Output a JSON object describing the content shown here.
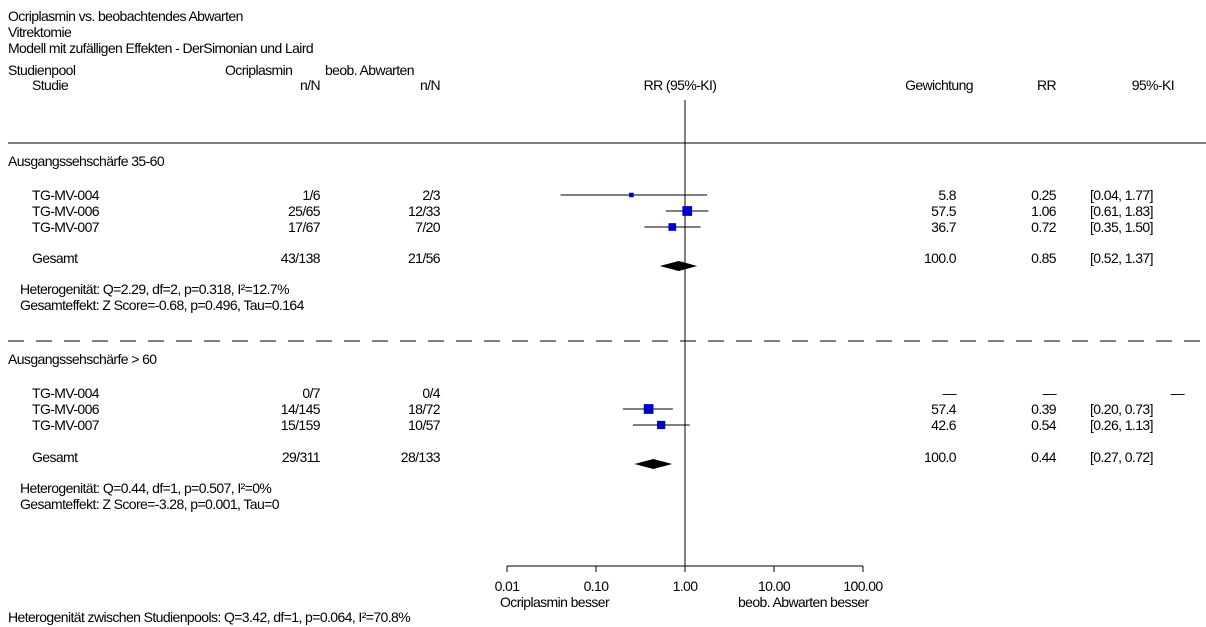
{
  "header": {
    "title": "Ocriplasmin vs. beobachtendes Abwarten",
    "endpoint": "Vitrektomie",
    "model": "Modell mit zufälligen Effekten - DerSimonian und Laird"
  },
  "columns": {
    "pool": "Studienpool",
    "study": "Studie",
    "group1": "Ocriplasmin",
    "group2": "beob. Abwarten",
    "nn1": "n/N",
    "nn2": "n/N",
    "effect": "RR (95%-KI)",
    "weight": "Gewichtung",
    "rr": "RR",
    "ci": "95%-KI"
  },
  "groups": [
    {
      "name": "Ausgangssehschärfe 35-60",
      "studies": [
        {
          "name": "TG-MV-004",
          "n1": "1/6",
          "n2": "2/3",
          "weight": "5.8",
          "rr": "0.25",
          "ci": "[0.04, 1.77]"
        },
        {
          "name": "TG-MV-006",
          "n1": "25/65",
          "n2": "12/33",
          "weight": "57.5",
          "rr": "1.06",
          "ci": "[0.61, 1.83]"
        },
        {
          "name": "TG-MV-007",
          "n1": "17/67",
          "n2": "7/20",
          "weight": "36.7",
          "rr": "0.72",
          "ci": "[0.35, 1.50]"
        }
      ],
      "total": {
        "name": "Gesamt",
        "n1": "43/138",
        "n2": "21/56",
        "weight": "100.0",
        "rr": "0.85",
        "ci": "[0.52, 1.37]"
      },
      "heterogeneity": "Heterogenität: Q=2.29, df=2, p=0.318, I²=12.7%",
      "overall": "Gesamteffekt: Z Score=-0.68, p=0.496, Tau=0.164"
    },
    {
      "name": "Ausgangssehschärfe > 60",
      "studies": [
        {
          "name": "TG-MV-004",
          "n1": "0/7",
          "n2": "0/4",
          "weight": "—",
          "rr": "—",
          "ci": "—"
        },
        {
          "name": "TG-MV-006",
          "n1": "14/145",
          "n2": "18/72",
          "weight": "57.4",
          "rr": "0.39",
          "ci": "[0.20, 0.73]"
        },
        {
          "name": "TG-MV-007",
          "n1": "15/159",
          "n2": "10/57",
          "weight": "42.6",
          "rr": "0.54",
          "ci": "[0.26, 1.13]"
        }
      ],
      "total": {
        "name": "Gesamt",
        "n1": "29/311",
        "n2": "28/133",
        "weight": "100.0",
        "rr": "0.44",
        "ci": "[0.27, 0.72]"
      },
      "heterogeneity": "Heterogenität: Q=0.44, df=1, p=0.507, I²=0%",
      "overall": "Gesamteffekt: Z Score=-3.28, p=0.001, Tau=0"
    }
  ],
  "axis": {
    "ticks": [
      "0.01",
      "0.10",
      "1.00",
      "10.00",
      "100.00"
    ],
    "left_label": "Ocriplasmin besser",
    "right_label": "beob. Abwarten besser"
  },
  "footer": "Heterogenität zwischen Studienpools: Q=3.42, df=1, p=0.064, I²=70.8%",
  "colors": {
    "marker": "#0000cc",
    "diamond": "#000000",
    "line": "#000000"
  },
  "chart_data": {
    "type": "forest",
    "x_scale": "log",
    "xlim": [
      0.01,
      100
    ],
    "reference_line": 1,
    "ticks": [
      0.01,
      0.1,
      1,
      10,
      100
    ],
    "groups": [
      {
        "name": "Ausgangssehschärfe 35-60",
        "studies": [
          {
            "name": "TG-MV-004",
            "rr": 0.25,
            "lo": 0.04,
            "hi": 1.77,
            "weight": 5.8
          },
          {
            "name": "TG-MV-006",
            "rr": 1.06,
            "lo": 0.61,
            "hi": 1.83,
            "weight": 57.5
          },
          {
            "name": "TG-MV-007",
            "rr": 0.72,
            "lo": 0.35,
            "hi": 1.5,
            "weight": 36.7
          }
        ],
        "pooled": {
          "rr": 0.85,
          "lo": 0.52,
          "hi": 1.37
        }
      },
      {
        "name": "Ausgangssehschärfe > 60",
        "studies": [
          {
            "name": "TG-MV-004",
            "rr": null,
            "lo": null,
            "hi": null,
            "weight": null
          },
          {
            "name": "TG-MV-006",
            "rr": 0.39,
            "lo": 0.2,
            "hi": 0.73,
            "weight": 57.4
          },
          {
            "name": "TG-MV-007",
            "rr": 0.54,
            "lo": 0.26,
            "hi": 1.13,
            "weight": 42.6
          }
        ],
        "pooled": {
          "rr": 0.44,
          "lo": 0.27,
          "hi": 0.72
        }
      }
    ]
  }
}
